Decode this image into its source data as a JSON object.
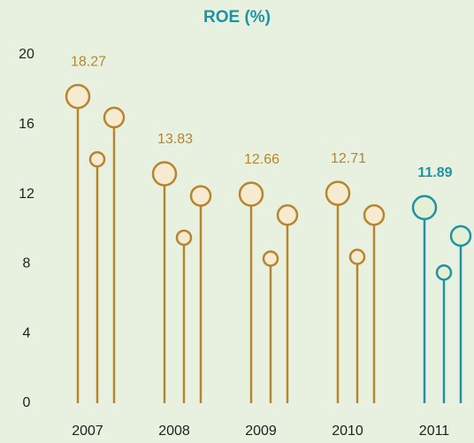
{
  "chart_data": {
    "type": "lollipop",
    "title": "ROE (%)",
    "categories": [
      "2007",
      "2008",
      "2009",
      "2010",
      "2011"
    ],
    "colors": [
      "#b5862f",
      "#b5862f",
      "#b5862f",
      "#b5862f",
      "#1f93a3"
    ],
    "fills": [
      "#f6ead0",
      "#f6ead0",
      "#f6ead0",
      "#f6ead0",
      "#e4f0d4"
    ],
    "series": [
      {
        "values": [
          18.27,
          13.83,
          12.66,
          12.71,
          11.89
        ]
      },
      {
        "values": [
          14.0,
          9.5,
          8.3,
          8.4,
          7.5
        ]
      },
      {
        "values": [
          16.4,
          11.9,
          10.8,
          10.8,
          9.6
        ]
      }
    ],
    "ylim": [
      0,
      20
    ],
    "yticks": [
      0,
      4,
      8,
      12,
      16,
      20
    ]
  }
}
